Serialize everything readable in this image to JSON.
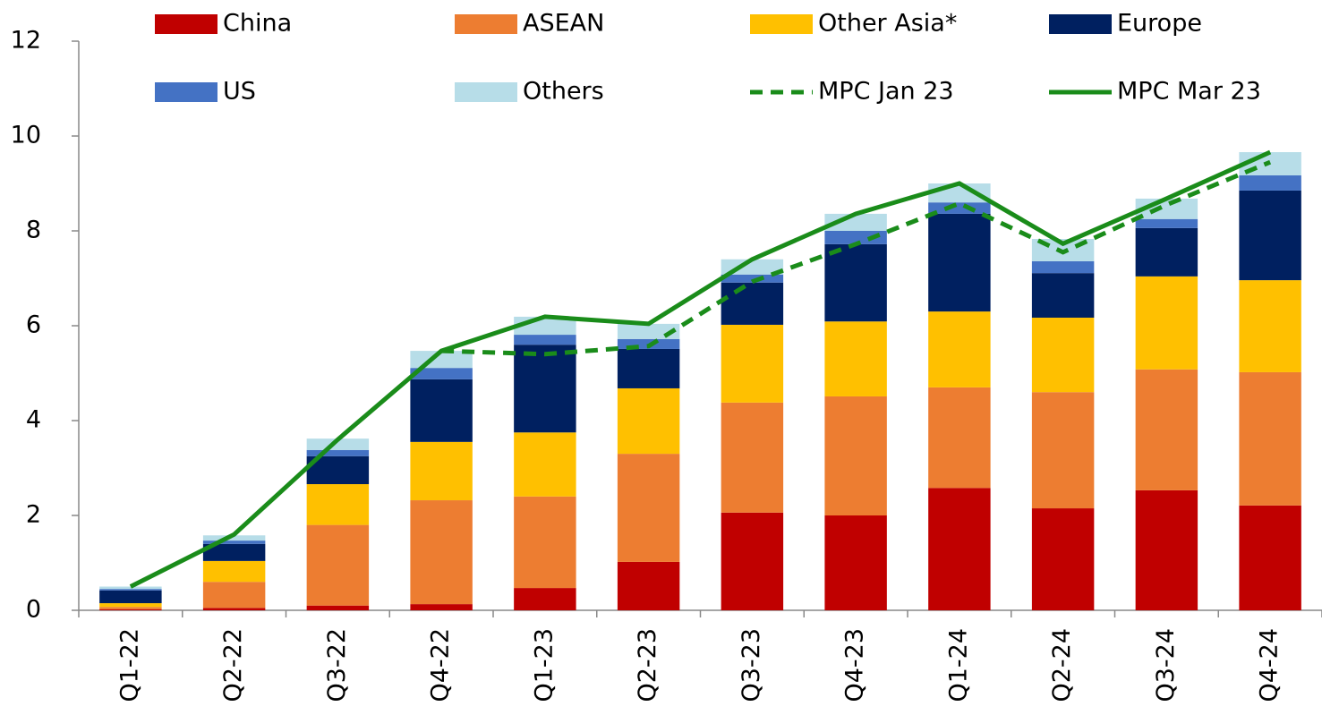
{
  "chart_data": {
    "type": "bar",
    "stacked": true,
    "categories": [
      "Q1-22",
      "Q2-22",
      "Q3-22",
      "Q4-22",
      "Q1-23",
      "Q2-23",
      "Q3-23",
      "Q4-23",
      "Q1-24",
      "Q2-24",
      "Q3-24",
      "Q4-24"
    ],
    "series": [
      {
        "name": "China",
        "color": "#c00000",
        "values": [
          0.02,
          0.05,
          0.1,
          0.13,
          0.47,
          1.02,
          2.06,
          2.0,
          2.58,
          2.15,
          2.53,
          2.21
        ]
      },
      {
        "name": "ASEAN",
        "color": "#ed7d31",
        "values": [
          0.05,
          0.55,
          1.7,
          2.19,
          1.93,
          2.28,
          2.32,
          2.51,
          2.12,
          2.45,
          2.55,
          2.81
        ]
      },
      {
        "name": "Other Asia*",
        "color": "#ffc000",
        "values": [
          0.08,
          0.44,
          0.86,
          1.23,
          1.35,
          1.38,
          1.64,
          1.58,
          1.6,
          1.57,
          1.96,
          1.94
        ]
      },
      {
        "name": "Europe",
        "color": "#002060",
        "values": [
          0.27,
          0.36,
          0.59,
          1.32,
          1.85,
          0.83,
          0.89,
          1.63,
          2.06,
          0.94,
          1.02,
          1.89
        ]
      },
      {
        "name": "US",
        "color": "#4472c4",
        "values": [
          0.03,
          0.07,
          0.13,
          0.24,
          0.21,
          0.21,
          0.17,
          0.28,
          0.24,
          0.25,
          0.19,
          0.32
        ]
      },
      {
        "name": "Others",
        "color": "#b7dde8",
        "values": [
          0.05,
          0.11,
          0.24,
          0.36,
          0.38,
          0.32,
          0.32,
          0.36,
          0.4,
          0.47,
          0.43,
          0.49
        ]
      },
      {
        "name": "MPC Jan 23",
        "type": "line",
        "dashed": true,
        "color": "#1a8c1a",
        "values": [
          null,
          null,
          null,
          5.47,
          5.4,
          5.57,
          6.93,
          7.72,
          8.58,
          7.55,
          8.55,
          9.45
        ]
      },
      {
        "name": "MPC Mar 23",
        "type": "line",
        "dashed": false,
        "color": "#1a8c1a",
        "values": [
          0.5,
          1.6,
          3.6,
          5.47,
          6.19,
          6.04,
          7.4,
          8.36,
          9.0,
          7.73,
          8.68,
          9.66
        ]
      }
    ],
    "ylim": [
      0,
      12
    ],
    "yticks": [
      0,
      2,
      4,
      6,
      8,
      10,
      12
    ]
  }
}
